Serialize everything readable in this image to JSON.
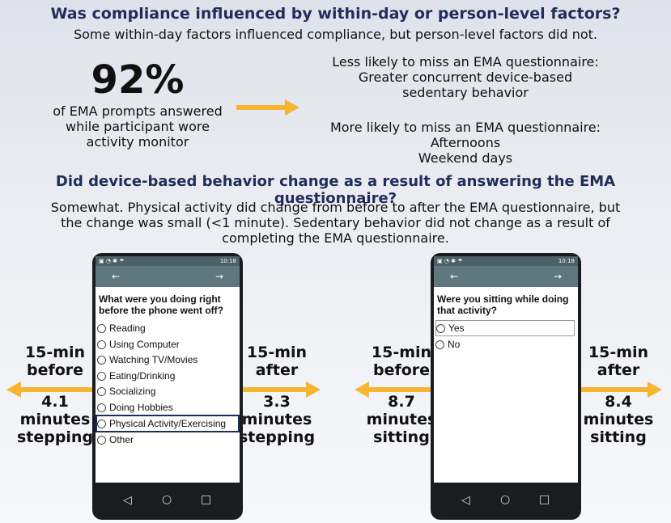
{
  "section1": {
    "title": "Was compliance influenced by within-day or person-level factors?",
    "subtitle": "Some within-day factors influenced compliance, but person-level factors did not."
  },
  "stat": {
    "value": "92%",
    "desc_lines": [
      "of EMA prompts answered",
      "while participant wore",
      "activity monitor"
    ]
  },
  "less_likely": {
    "heading": "Less likely to miss an EMA questionnaire:",
    "items": [
      "Greater concurrent device-based",
      "sedentary behavior"
    ]
  },
  "more_likely": {
    "heading": "More likely to miss an EMA questionnaire:",
    "items": [
      "Afternoons",
      "Weekend days"
    ]
  },
  "section2": {
    "title": "Did device-based behavior change as a result of answering the EMA questionnaire?",
    "body_lines": [
      "Somewhat. Physical activity did change from before to after the EMA questionnaire, but",
      "the change was small (<1 minute). Sedentary behavior did not change as a result of",
      "completing the EMA questionnaire."
    ]
  },
  "panel_left": {
    "before_label": [
      "15-min",
      "before"
    ],
    "before_value": [
      "4.1",
      "minutes",
      "stepping"
    ],
    "after_label": [
      "15-min",
      "after"
    ],
    "after_value": [
      "3.3",
      "minutes",
      "stepping"
    ],
    "phone": {
      "time": "10:18",
      "back": "←",
      "forward": "→",
      "question_lines": [
        "What were you doing right",
        "before the phone went off?"
      ],
      "options": [
        "Reading",
        "Using Computer",
        "Watching TV/Movies",
        "Eating/Drinking",
        "Socializing",
        "Doing Hobbies",
        "Physical Activity/Exercising",
        "Other"
      ],
      "selected_index": 6
    }
  },
  "panel_right": {
    "before_label": [
      "15-min",
      "before"
    ],
    "before_value": [
      "8.7",
      "minutes",
      "sitting"
    ],
    "after_label": [
      "15-min",
      "after"
    ],
    "after_value": [
      "8.4",
      "minutes",
      "sitting"
    ],
    "phone": {
      "time": "10:18",
      "back": "←",
      "forward": "→",
      "question_lines": [
        "Were you sitting while doing",
        "that activity?"
      ],
      "options": [
        "Yes",
        "No"
      ],
      "selected_index": 0
    }
  },
  "softkeys": {
    "back": "◁",
    "home": "○",
    "recent": "□"
  },
  "colors": {
    "accent_arrow": "#f6b531",
    "title": "#1f2d5a"
  }
}
